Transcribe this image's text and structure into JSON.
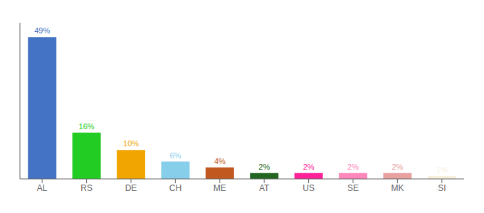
{
  "chart_data": {
    "type": "bar",
    "categories": [
      "AL",
      "RS",
      "DE",
      "CH",
      "ME",
      "AT",
      "US",
      "SE",
      "MK",
      "SI"
    ],
    "values": [
      49,
      16,
      10,
      6,
      4,
      2,
      2,
      2,
      2,
      1
    ],
    "value_labels": [
      "49%",
      "16%",
      "10%",
      "6%",
      "4%",
      "2%",
      "2%",
      "2%",
      "2%",
      "1%"
    ],
    "colors": [
      "#4472c4",
      "#22cc22",
      "#f0a500",
      "#87ceeb",
      "#c05820",
      "#226622",
      "#ff2299",
      "#ff88bb",
      "#e8a0a0",
      "#f5f0dc"
    ],
    "ylim": [
      0,
      54
    ],
    "data_labels": true,
    "tick_labels": "x",
    "grid": false
  }
}
